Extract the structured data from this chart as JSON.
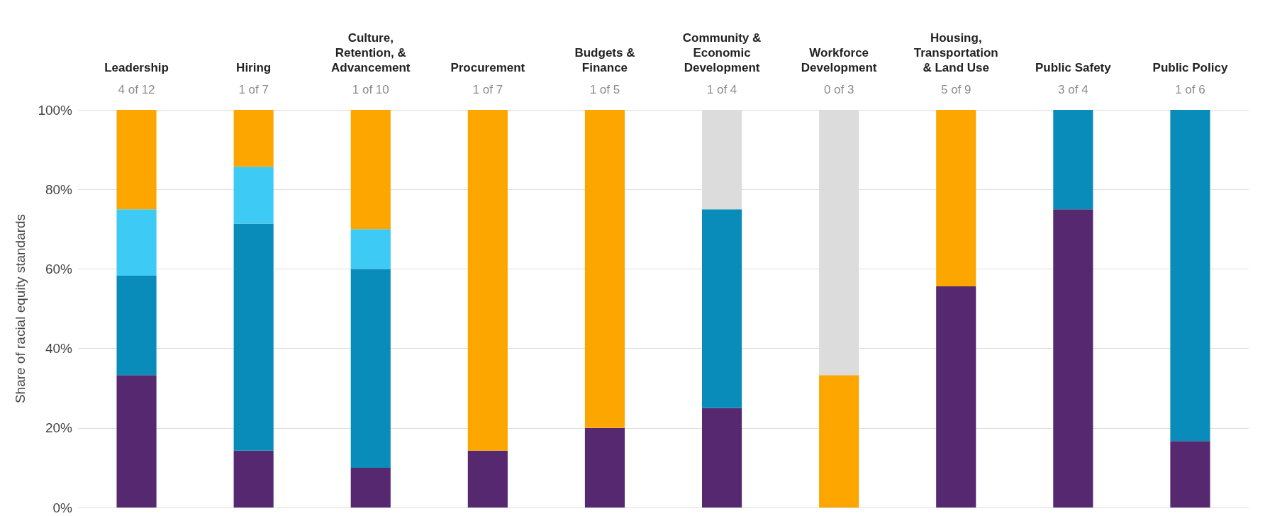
{
  "chart_data": {
    "type": "bar",
    "stacked": true,
    "ylabel": "Share of racial equity standards",
    "categories": [
      "Leadership",
      "Hiring",
      "Culture,\nRetention, &\nAdvancement",
      "Procurement",
      "Budgets &\nFinance",
      "Community &\nEconomic\nDevelopment",
      "Workforce\nDevelopment",
      "Housing,\nTransportation\n& Land Use",
      "Public Safety",
      "Public Policy"
    ],
    "series": [
      {
        "color": "#55286f",
        "values": [
          33.3,
          14.3,
          10,
          14.3,
          20,
          25,
          null,
          55.6,
          75,
          16.7
        ]
      },
      {
        "color": "#0a8cba",
        "values": [
          25,
          57.1,
          50,
          null,
          null,
          50,
          null,
          null,
          25,
          83.3
        ]
      },
      {
        "color": "#3dcaf5",
        "values": [
          16.7,
          14.3,
          10,
          null,
          null,
          null,
          null,
          null,
          null,
          null
        ]
      },
      {
        "color": "#fda600",
        "values": [
          25,
          14.3,
          30,
          85.7,
          80,
          null,
          33.3,
          44.4,
          null,
          null
        ]
      },
      {
        "color": "#dcdcdc",
        "values": [
          null,
          null,
          null,
          null,
          null,
          25,
          66.7,
          null,
          null,
          null
        ]
      }
    ],
    "annotations": [
      "4 of 12",
      "1 of 7",
      "1 of 10",
      "1 of 7",
      "1 of 5",
      "1 of 4",
      "0 of 3",
      "5 of 9",
      "3 of 4",
      "1 of 6"
    ],
    "ylim": [
      0,
      100
    ],
    "yticks": [
      {
        "value": 0,
        "label": "0%"
      },
      {
        "value": 20,
        "label": "20%"
      },
      {
        "value": 40,
        "label": "40%"
      },
      {
        "value": 60,
        "label": "60%"
      },
      {
        "value": 80,
        "label": "80%"
      },
      {
        "value": 100,
        "label": "100%"
      }
    ],
    "grid": "y"
  }
}
